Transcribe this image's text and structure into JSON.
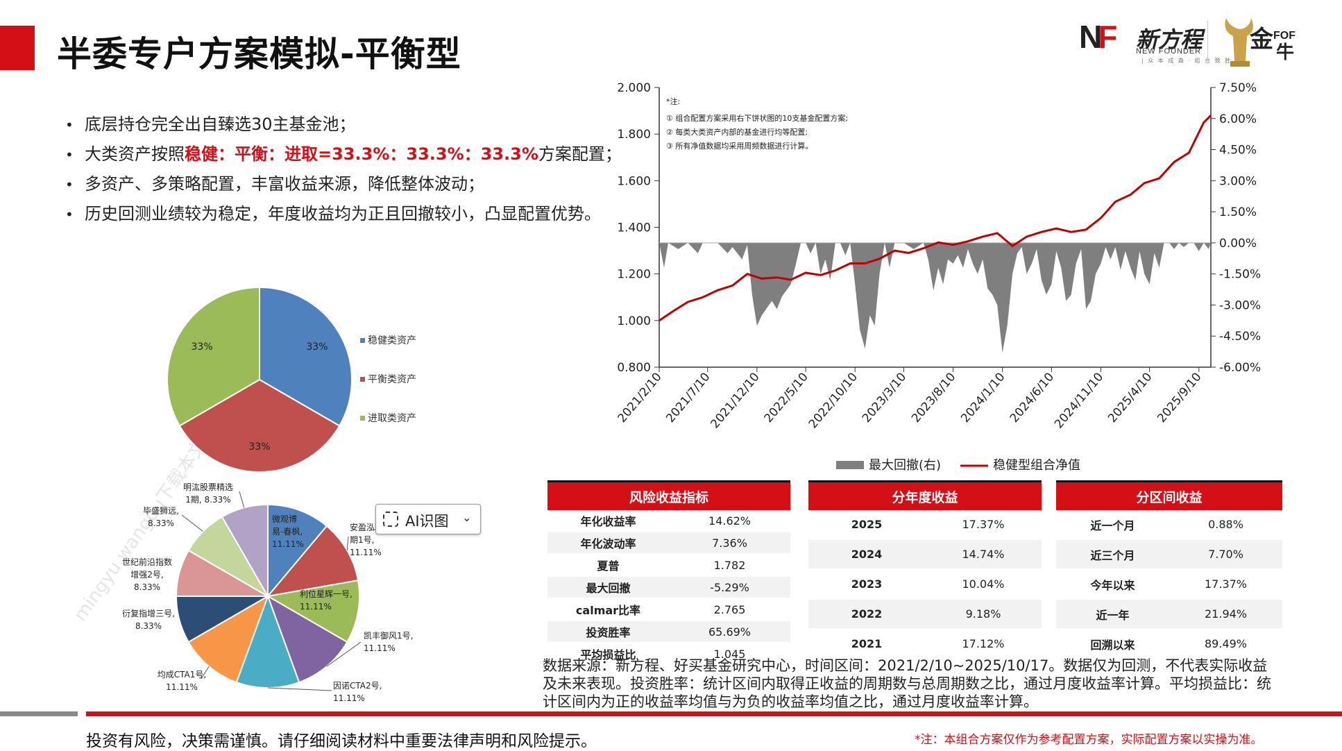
{
  "slide": {
    "title": "半委专户方案模拟-平衡型",
    "logo": {
      "nf_text": "NF",
      "cn": "新方程",
      "en": "NEW FOUNDER",
      "sub": "| 众 本 成 森 · 组 合 致 胜 |",
      "fof_text": "FOF"
    },
    "bullets": [
      {
        "pre": "底层持仓完全出自臻选30主基金池；",
        "hl": "",
        "post": ""
      },
      {
        "pre": "大类资产按照",
        "hl": "稳健：平衡：进取=33.3%：33.3%：33.3%",
        "post": "方案配置；"
      },
      {
        "pre": "多资产、多策略配置，丰富收益来源，降低整体波动；",
        "hl": "",
        "post": ""
      },
      {
        "pre": "历史回测业绩较为稳定，年度收益均为正且回撤较小，凸显配置优势。",
        "hl": "",
        "post": ""
      }
    ],
    "watermark": "mingyu.wangou下载本文档"
  },
  "chart_data": [
    {
      "type": "pie",
      "categories": [
        "稳健类资产",
        "平衡类资产",
        "进取类资产"
      ],
      "values": [
        33.3,
        33.3,
        33.3
      ],
      "labels": [
        "33%",
        "33%",
        "33%"
      ],
      "colors": [
        "#4f81bd",
        "#c0504d",
        "#9bbb59"
      ],
      "legend": "right"
    },
    {
      "type": "pie",
      "categories": [
        "微观博易-春枫",
        "安盈泓利6月期1号",
        "利位星辉一号",
        "凯丰御风1号",
        "因诺CTA2号",
        "均成CTA1号",
        "衍复指增三号",
        "世纪前沿指数增强2号",
        "毕盛狮远",
        "明汯股票精选1期"
      ],
      "labels": [
        "微观博易-春枫, 11.11%",
        "安盈泓利6月期1号, 11.11%",
        "利位星辉一号, 11.11%",
        "凯丰御风1号, 11.11%",
        "因诺CTA2号, 11.11%",
        "均成CTA1号, 11.11%",
        "衍复指增三号, 8.33%",
        "世纪前沿指数增强2号, 8.33%",
        "毕盛狮远, 8.33%",
        "明汯股票精选1期, 8.33%"
      ],
      "label_lines": [
        [
          "微观博",
          "易-春枫,",
          "11.11%"
        ],
        [
          "安盈泓利6月",
          "期1号,",
          "11.11%"
        ],
        [
          "利位星辉一号,",
          "11.11%"
        ],
        [
          "凯丰御风1号,",
          "11.11%"
        ],
        [
          "因诺CTA2号,",
          "11.11%"
        ],
        [
          "均成CTA1号,",
          "11.11%"
        ],
        [
          "衍复指增三号,",
          "8.33%"
        ],
        [
          "世纪前沿指数",
          "增强2号,",
          "8.33%"
        ],
        [
          "毕盛狮远,",
          "8.33%"
        ],
        [
          "明汯股票精选",
          "1期, 8.33%"
        ]
      ],
      "values": [
        11.11,
        11.11,
        11.11,
        11.11,
        11.11,
        11.11,
        8.33,
        8.33,
        8.33,
        8.33
      ],
      "colors": [
        "#4f81bd",
        "#c0504d",
        "#9bbb59",
        "#8064a2",
        "#4bacc6",
        "#f79646",
        "#2c4d75",
        "#d99694",
        "#c3d69b",
        "#b3a2c7"
      ]
    },
    {
      "type": "line",
      "x_ticks": [
        "2021/2/10",
        "2021/7/10",
        "2021/12/10",
        "2022/5/10",
        "2022/10/10",
        "2023/3/10",
        "2023/8/10",
        "2024/1/10",
        "2024/6/10",
        "2024/11/10",
        "2025/4/10",
        "2025/9/10"
      ],
      "y_left_ticks": [
        "2.000",
        "1.800",
        "1.600",
        "1.400",
        "1.200",
        "1.000",
        "0.800"
      ],
      "y_right_ticks": [
        "7.50%",
        "6.00%",
        "4.50%",
        "3.00%",
        "1.50%",
        "0.00%",
        "-1.50%",
        "-3.00%",
        "-4.50%",
        "-6.00%"
      ],
      "ylim_left": [
        0.8,
        2.0
      ],
      "ylim_right": [
        -6.0,
        7.5
      ],
      "x_range": [
        "2021/2/10",
        "2025/10/17"
      ],
      "notes": [
        "*注:",
        "①    组合配置方案采用右下饼状图的10支基金配置方案;",
        "②    每类大类资产内部的基金进行均等配置;",
        "③    所有净值数据均采用周频数据进行计算。"
      ],
      "legend": [
        "最大回撤(右)",
        "稳健型组合净值"
      ],
      "legend_placement": "bottom",
      "series": [
        {
          "name": "稳健型组合净值",
          "axis": "left",
          "color": "#c00000",
          "points": [
            [
              "2021/2/10",
              1.0
            ],
            [
              "2021/3/25",
              1.04
            ],
            [
              "2021/5/10",
              1.08
            ],
            [
              "2021/6/25",
              1.1
            ],
            [
              "2021/8/10",
              1.13
            ],
            [
              "2021/9/25",
              1.15
            ],
            [
              "2021/11/10",
              1.2
            ],
            [
              "2021/12/25",
              1.18
            ],
            [
              "2022/2/10",
              1.185
            ],
            [
              "2022/3/25",
              1.175
            ],
            [
              "2022/5/10",
              1.205
            ],
            [
              "2022/6/25",
              1.195
            ],
            [
              "2022/8/10",
              1.215
            ],
            [
              "2022/9/25",
              1.245
            ],
            [
              "2022/11/10",
              1.245
            ],
            [
              "2022/12/25",
              1.265
            ],
            [
              "2023/2/10",
              1.3
            ],
            [
              "2023/3/25",
              1.29
            ],
            [
              "2023/5/10",
              1.31
            ],
            [
              "2023/6/25",
              1.335
            ],
            [
              "2023/8/10",
              1.325
            ],
            [
              "2023/9/25",
              1.34
            ],
            [
              "2023/11/10",
              1.36
            ],
            [
              "2023/12/25",
              1.375
            ],
            [
              "2024/2/10",
              1.32
            ],
            [
              "2024/3/25",
              1.36
            ],
            [
              "2024/5/10",
              1.38
            ],
            [
              "2024/6/25",
              1.395
            ],
            [
              "2024/8/10",
              1.38
            ],
            [
              "2024/9/25",
              1.39
            ],
            [
              "2024/11/10",
              1.44
            ],
            [
              "2024/12/25",
              1.51
            ],
            [
              "2025/2/10",
              1.54
            ],
            [
              "2025/3/25",
              1.59
            ],
            [
              "2025/5/10",
              1.61
            ],
            [
              "2025/6/25",
              1.68
            ],
            [
              "2025/8/10",
              1.72
            ],
            [
              "2025/9/25",
              1.85
            ],
            [
              "2025/10/17",
              1.88
            ]
          ]
        },
        {
          "name": "最大回撤(右)",
          "axis": "right",
          "color": "#7f7f7f",
          "points": [
            [
              "2021/2/10",
              0
            ],
            [
              "2021/2/25",
              -1.2
            ],
            [
              "2021/3/10",
              0
            ],
            [
              "2021/4/10",
              -0.3
            ],
            [
              "2021/5/10",
              0
            ],
            [
              "2021/6/10",
              -0.5
            ],
            [
              "2021/6/25",
              0
            ],
            [
              "2021/8/10",
              0
            ],
            [
              "2021/9/10",
              -0.5
            ],
            [
              "2021/9/25",
              -0.2
            ],
            [
              "2021/10/25",
              -0.8
            ],
            [
              "2021/11/10",
              -0.1
            ],
            [
              "2021/11/25",
              -2.5
            ],
            [
              "2021/12/10",
              -4.0
            ],
            [
              "2021/12/25",
              -3.5
            ],
            [
              "2022/1/25",
              -2.8
            ],
            [
              "2022/2/10",
              -3.2
            ],
            [
              "2022/2/25",
              -2.6
            ],
            [
              "2022/3/25",
              -2.0
            ],
            [
              "2022/4/10",
              -1.0
            ],
            [
              "2022/4/25",
              0
            ],
            [
              "2022/5/10",
              0
            ],
            [
              "2022/5/25",
              -0.5
            ],
            [
              "2022/6/10",
              0
            ],
            [
              "2022/6/25",
              -1.5
            ],
            [
              "2022/7/10",
              -0.8
            ],
            [
              "2022/7/25",
              -1.8
            ],
            [
              "2022/8/10",
              0
            ],
            [
              "2022/8/25",
              0
            ],
            [
              "2022/9/10",
              -0.6
            ],
            [
              "2022/9/25",
              0
            ],
            [
              "2022/10/10",
              -2.0
            ],
            [
              "2022/10/25",
              -4.2
            ],
            [
              "2022/11/10",
              -5.1
            ],
            [
              "2022/11/25",
              -3.5
            ],
            [
              "2022/12/10",
              -4.0
            ],
            [
              "2022/12/25",
              -1.5
            ],
            [
              "2023/1/10",
              0
            ],
            [
              "2023/1/25",
              -1.2
            ],
            [
              "2023/2/10",
              0
            ],
            [
              "2023/3/10",
              0
            ],
            [
              "2023/4/10",
              -0.3
            ],
            [
              "2023/5/10",
              0
            ],
            [
              "2023/5/25",
              -0.8
            ],
            [
              "2023/6/10",
              -2.3
            ],
            [
              "2023/6/25",
              -1.2
            ],
            [
              "2023/7/10",
              -2.0
            ],
            [
              "2023/7/25",
              -0.8
            ],
            [
              "2023/8/10",
              -1.0
            ],
            [
              "2023/8/25",
              -0.6
            ],
            [
              "2023/9/10",
              -1.2
            ],
            [
              "2023/9/25",
              -0.3
            ],
            [
              "2023/10/10",
              -1.0
            ],
            [
              "2023/10/25",
              -1.5
            ],
            [
              "2023/11/10",
              -0.8
            ],
            [
              "2023/11/25",
              -2.2
            ],
            [
              "2023/12/10",
              -2.5
            ],
            [
              "2023/12/25",
              -3.0
            ],
            [
              "2024/1/10",
              -5.3
            ],
            [
              "2024/1/25",
              -4.0
            ],
            [
              "2024/2/10",
              -1.5
            ],
            [
              "2024/2/25",
              -0.5
            ],
            [
              "2024/3/10",
              -0.2
            ],
            [
              "2024/3/25",
              -1.5
            ],
            [
              "2024/4/10",
              -1.0
            ],
            [
              "2024/4/25",
              -0.3
            ],
            [
              "2024/5/10",
              -1.8
            ],
            [
              "2024/5/25",
              -2.5
            ],
            [
              "2024/6/10",
              -2.0
            ],
            [
              "2024/6/25",
              -0.4
            ],
            [
              "2024/7/10",
              -1.2
            ],
            [
              "2024/7/25",
              -2.8
            ],
            [
              "2024/8/10",
              -2.5
            ],
            [
              "2024/8/25",
              -1.0
            ],
            [
              "2024/9/10",
              -0.3
            ],
            [
              "2024/9/25",
              -3.2
            ],
            [
              "2024/10/10",
              -2.8
            ],
            [
              "2024/10/25",
              -1.5
            ],
            [
              "2024/11/10",
              -1.0
            ],
            [
              "2024/11/25",
              -0.2
            ],
            [
              "2024/12/10",
              -0.8
            ],
            [
              "2024/12/25",
              -0.2
            ],
            [
              "2025/1/10",
              -1.3
            ],
            [
              "2025/1/25",
              -0.4
            ],
            [
              "2025/2/10",
              -1.2
            ],
            [
              "2025/2/25",
              -1.8
            ],
            [
              "2025/3/10",
              -0.4
            ],
            [
              "2025/3/25",
              -1.5
            ],
            [
              "2025/4/10",
              -2.0
            ],
            [
              "2025/4/25",
              -0.5
            ],
            [
              "2025/5/10",
              -1.2
            ],
            [
              "2025/5/25",
              0
            ],
            [
              "2025/6/10",
              0
            ],
            [
              "2025/6/25",
              -0.3
            ],
            [
              "2025/7/10",
              0
            ],
            [
              "2025/7/25",
              -0.2
            ],
            [
              "2025/8/10",
              0
            ],
            [
              "2025/8/25",
              0
            ],
            [
              "2025/9/10",
              -0.4
            ],
            [
              "2025/9/25",
              0
            ],
            [
              "2025/10/10",
              -0.3
            ],
            [
              "2025/10/17",
              0
            ]
          ]
        }
      ]
    }
  ],
  "tables": {
    "risk": {
      "header": "风险收益指标",
      "rows": [
        [
          "年化收益率",
          "14.62%"
        ],
        [
          "年化波动率",
          "7.36%"
        ],
        [
          "夏普",
          "1.782"
        ],
        [
          "最大回撤",
          "-5.29%"
        ],
        [
          "calmar比率",
          "2.765"
        ],
        [
          "投资胜率",
          "65.69%"
        ],
        [
          "平均损益比",
          "1.045"
        ]
      ]
    },
    "annual": {
      "header": "分年度收益",
      "rows": [
        [
          "2025",
          "17.37%"
        ],
        [
          "2024",
          "14.74%"
        ],
        [
          "2023",
          "10.04%"
        ],
        [
          "2022",
          "9.18%"
        ],
        [
          "2021",
          "17.12%"
        ]
      ]
    },
    "period": {
      "header": "分区间收益",
      "rows": [
        [
          "近一个月",
          "0.88%"
        ],
        [
          "近三个月",
          "7.70%"
        ],
        [
          "今年以来",
          "17.37%"
        ],
        [
          "近一年",
          "21.94%"
        ],
        [
          "回溯以来",
          "89.49%"
        ]
      ]
    }
  },
  "source_text": "数据来源：新方程、好买基金研究中心，时间区间：2021/2/10~2025/10/17。数据仅为回测，不代表实际收益及未来表现。投资胜率：统计区间内取得正收益的周期数与总周期数之比，通过月度收益率计算。平均损益比：统计区间内为正的收益率均值与为负的收益率均值之比，通过月度收益率计算。",
  "footer": {
    "left": "投资有风险，决策需谨慎。请仔细阅读材料中重要法律声明和风险提示。",
    "right": "*注：本组合方案仅作为参考配置方案，实际配置方案以实操为准。"
  },
  "ai_button": {
    "label": "AI识图",
    "icon": "ai-scan-icon",
    "chevron": "chevron-down-icon"
  },
  "colors": {
    "accent": "#d40f16",
    "nav_line": "#c00000",
    "drawdown": "#7f7f7f"
  }
}
